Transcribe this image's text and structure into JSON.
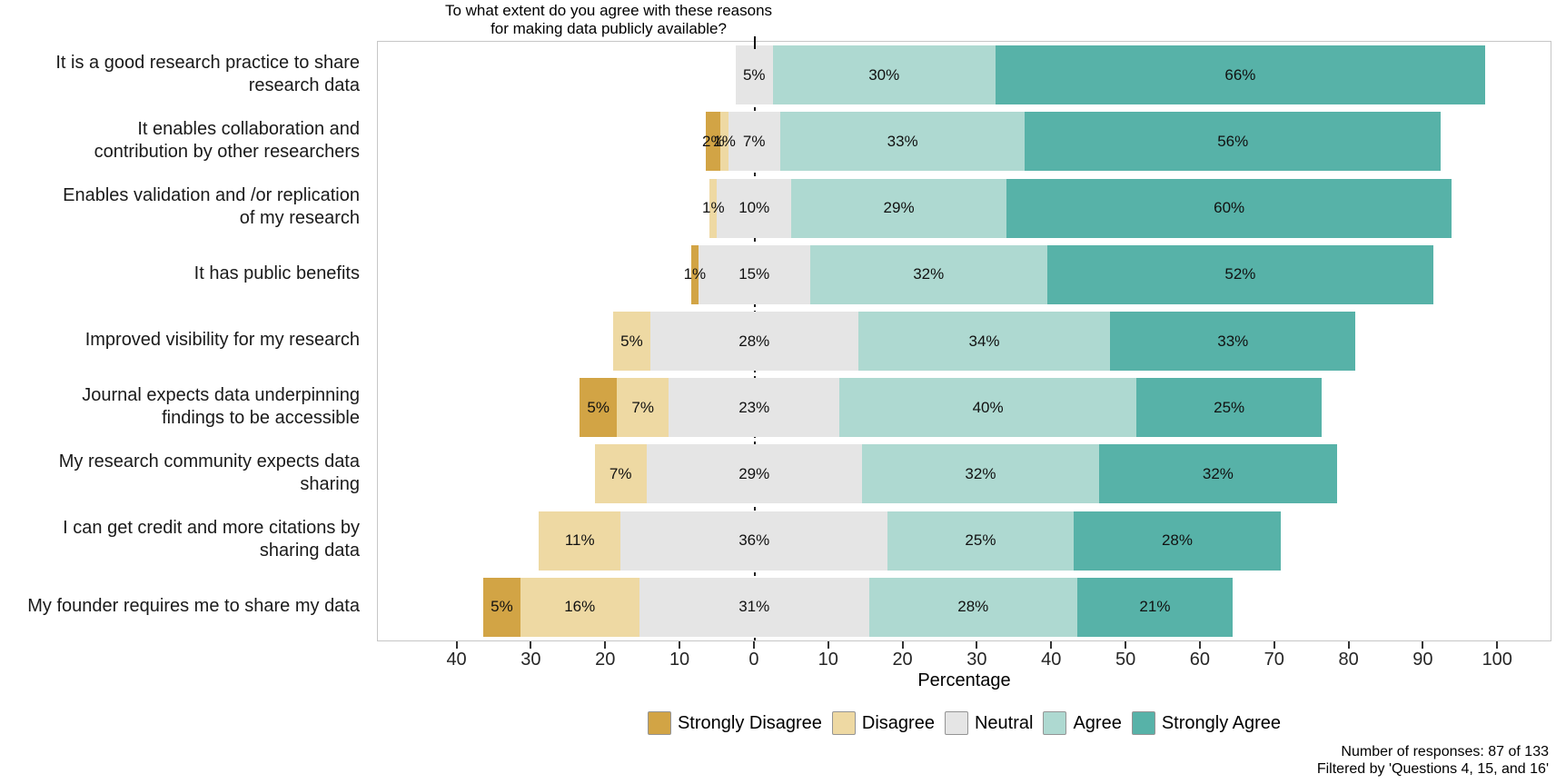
{
  "title": {
    "line1": "To what extent do you agree with these reasons",
    "line2": "for making data publicly available?"
  },
  "chart_data": {
    "type": "bar",
    "subtype": "diverging_stacked_likert",
    "title": "To what extent do you agree with these reasons for making data publicly available?",
    "xlabel": "Percentage",
    "axis": {
      "min": -50.7,
      "max": 107.3,
      "zero_value": 0,
      "ticks": [
        {
          "value": -40,
          "label": "40"
        },
        {
          "value": -30,
          "label": "30"
        },
        {
          "value": -20,
          "label": "20"
        },
        {
          "value": -10,
          "label": "10"
        },
        {
          "value": 0,
          "label": "0"
        },
        {
          "value": 10,
          "label": "10"
        },
        {
          "value": 20,
          "label": "20"
        },
        {
          "value": 30,
          "label": "30"
        },
        {
          "value": 40,
          "label": "40"
        },
        {
          "value": 50,
          "label": "50"
        },
        {
          "value": 60,
          "label": "60"
        },
        {
          "value": 70,
          "label": "70"
        },
        {
          "value": 80,
          "label": "80"
        },
        {
          "value": 90,
          "label": "90"
        },
        {
          "value": 100,
          "label": "100"
        }
      ]
    },
    "legend": [
      {
        "label": "Strongly Disagree",
        "color": "#d2a445"
      },
      {
        "label": "Disagree",
        "color": "#eed9a3"
      },
      {
        "label": "Neutral",
        "color": "#e5e5e5"
      },
      {
        "label": "Agree",
        "color": "#aed9d1"
      },
      {
        "label": "Strongly Agree",
        "color": "#57b2a8"
      }
    ],
    "legend_position": "bottom",
    "rows": [
      {
        "category_lines": [
          "It is a good research practice to share",
          "research data"
        ],
        "segments": [
          0,
          0,
          5,
          30,
          66
        ]
      },
      {
        "category_lines": [
          "It enables collaboration and",
          "contribution by other researchers"
        ],
        "segments": [
          2,
          1,
          7,
          33,
          56
        ]
      },
      {
        "category_lines": [
          "Enables validation and /or replication",
          "of my research"
        ],
        "segments": [
          0,
          1,
          10,
          29,
          60
        ]
      },
      {
        "category_lines": [
          "It has public benefits"
        ],
        "segments": [
          1,
          0,
          15,
          32,
          52
        ]
      },
      {
        "category_lines": [
          "Improved visibility for my research"
        ],
        "segments": [
          0,
          5,
          28,
          34,
          33
        ]
      },
      {
        "category_lines": [
          "Journal expects data underpinning",
          "findings to be accessible"
        ],
        "segments": [
          5,
          7,
          23,
          40,
          25
        ]
      },
      {
        "category_lines": [
          "My research community expects data",
          "sharing"
        ],
        "segments": [
          0,
          7,
          29,
          32,
          32
        ]
      },
      {
        "category_lines": [
          "I can get credit and more citations by",
          "sharing data"
        ],
        "segments": [
          0,
          11,
          36,
          25,
          28
        ]
      },
      {
        "category_lines": [
          "My founder requires me to share my data"
        ],
        "segments": [
          5,
          16,
          31,
          28,
          21
        ]
      }
    ],
    "label_format": "percent",
    "zero_line": {
      "style": "dashed",
      "color": "#222222"
    }
  },
  "footer": {
    "line1": "Number of responses: 87 of 133",
    "line2": "Filtered by 'Questions 4, 15, and 16'"
  }
}
